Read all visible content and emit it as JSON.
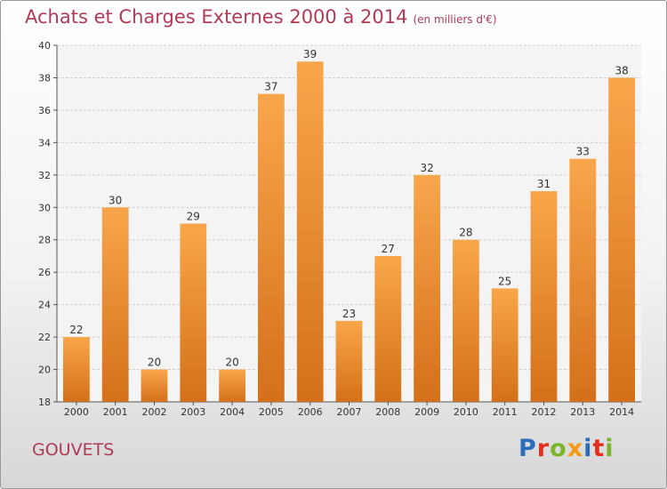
{
  "chart_data": {
    "type": "bar",
    "title": "Achats et Charges Externes 2000 à 2014",
    "subtitle": "(en milliers d'€)",
    "categories": [
      "2000",
      "2001",
      "2002",
      "2003",
      "2004",
      "2005",
      "2006",
      "2007",
      "2008",
      "2009",
      "2010",
      "2011",
      "2012",
      "2013",
      "2014"
    ],
    "values": [
      22,
      30,
      20,
      29,
      20,
      37,
      39,
      23,
      27,
      32,
      28,
      25,
      31,
      33,
      38
    ],
    "ylim": [
      18,
      40
    ],
    "yticks": [
      18,
      20,
      22,
      24,
      26,
      28,
      30,
      32,
      34,
      36,
      38,
      40
    ],
    "grid": true,
    "bar_color": "#f0902c",
    "legend": "none"
  },
  "footer": {
    "commune": "GOUVETS",
    "logo_letters": [
      "P",
      "r",
      "o",
      "x",
      "i",
      "t",
      "i"
    ],
    "logo_colors": [
      "#2a6ebb",
      "#e2301e",
      "#7ab52a",
      "#f39a17",
      "#2a6ebb",
      "#e2301e",
      "#7ab52a"
    ]
  }
}
